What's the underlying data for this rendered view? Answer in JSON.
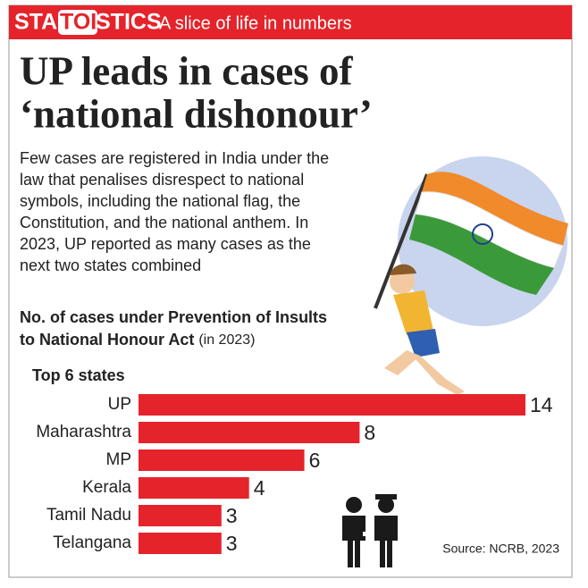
{
  "header": {
    "brand_start": "STA",
    "brand_middle": "TOI",
    "brand_end": "STICS",
    "tagline": "A slice of life in numbers"
  },
  "headline_lines": [
    "UP leads in cases of",
    "‘national dishonour’"
  ],
  "intro_lines": [
    "Few cases are registered in India under the",
    "law that penalises disrespect to national",
    "symbols, including the national flag, the",
    "Constitution, and the national anthem. In",
    "2023, UP reported as many cases as the",
    "next two states combined"
  ],
  "chart_data": {
    "type": "bar",
    "orientation": "horizontal",
    "title_lines": [
      "No. of cases under Prevention of Insults",
      "to National Honour Act"
    ],
    "subtitle": "(in 2023)",
    "category_axis_title": "Top 6 states",
    "categories": [
      "UP",
      "Maharashtra",
      "MP",
      "Kerala",
      "Tamil Nadu",
      "Telangana"
    ],
    "values": [
      14,
      8,
      6,
      4,
      3,
      3
    ],
    "color": "#e5232b",
    "source": "Source: NCRB, 2023"
  }
}
